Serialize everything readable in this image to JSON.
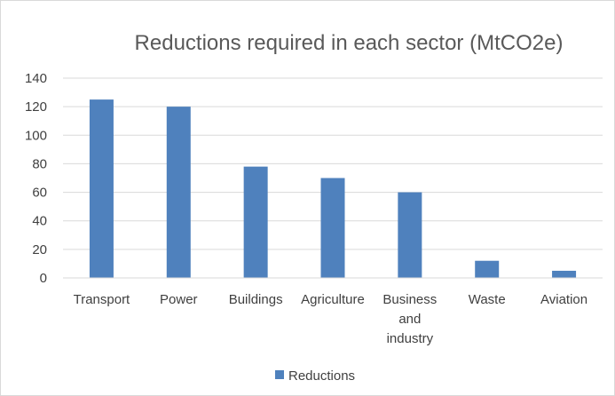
{
  "chart_data": {
    "type": "bar",
    "title": "Reductions required in each sector (MtCO2e)",
    "categories": [
      "Transport",
      "Power",
      "Buildings",
      "Agriculture",
      "Business and industry",
      "Waste",
      "Aviation"
    ],
    "category_lines": [
      [
        "Transport"
      ],
      [
        "Power"
      ],
      [
        "Buildings"
      ],
      [
        "Agriculture"
      ],
      [
        "Business",
        "and",
        "industry"
      ],
      [
        "Waste"
      ],
      [
        "Aviation"
      ]
    ],
    "series": [
      {
        "name": "Reductions",
        "values": [
          125,
          120,
          78,
          70,
          60,
          12,
          5
        ],
        "color": "#4f81bd"
      }
    ],
    "ylim": [
      0,
      140
    ],
    "yticks": [
      0,
      20,
      40,
      60,
      80,
      100,
      120,
      140
    ],
    "grid": true,
    "legend": "bottom"
  }
}
